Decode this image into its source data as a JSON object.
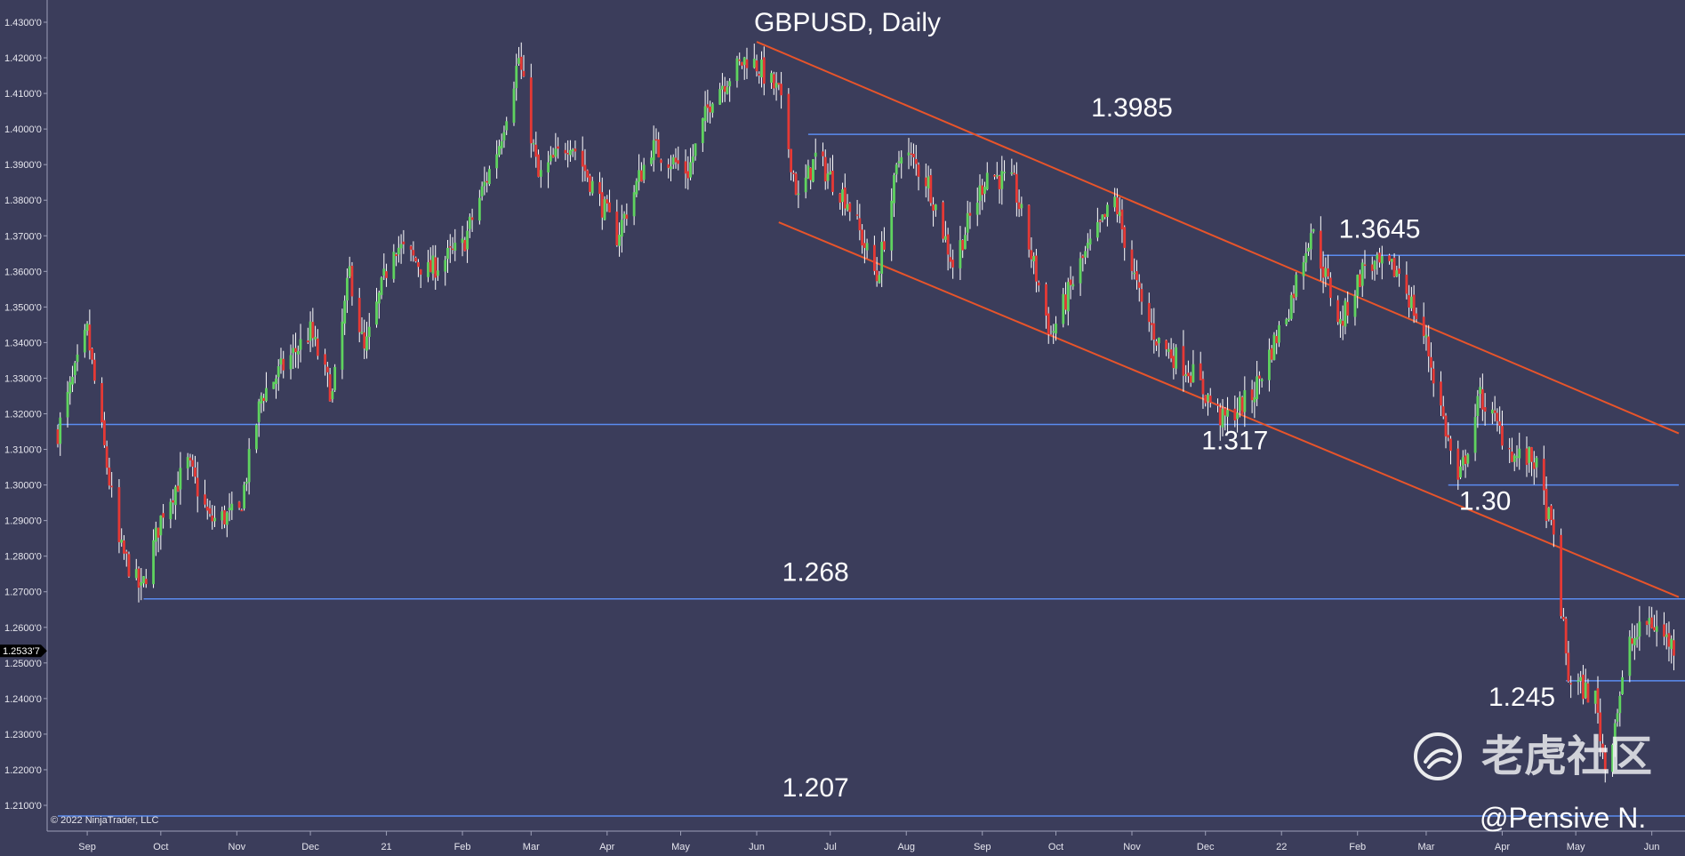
{
  "chart_data": {
    "type": "candlestick",
    "title": "GBPUSD, Daily",
    "symbol": "GBPUSD",
    "timeframe": "Daily",
    "ylim": [
      1.204,
      1.433
    ],
    "y_ticks": [
      "1.4300'0",
      "1.4200'0",
      "1.4100'0",
      "1.4000'0",
      "1.3900'0",
      "1.3800'0",
      "1.3700'0",
      "1.3600'0",
      "1.3500'0",
      "1.3400'0",
      "1.3300'0",
      "1.3200'0",
      "1.3100'0",
      "1.3000'0",
      "1.2900'0",
      "1.2800'0",
      "1.2700'0",
      "1.2600'0",
      "1.2500'0",
      "1.2400'0",
      "1.2300'0",
      "1.2200'0",
      "1.2100'0"
    ],
    "y_tick_values": [
      1.43,
      1.42,
      1.41,
      1.4,
      1.39,
      1.38,
      1.37,
      1.36,
      1.35,
      1.34,
      1.33,
      1.32,
      1.31,
      1.3,
      1.29,
      1.28,
      1.27,
      1.26,
      1.25,
      1.24,
      1.23,
      1.22,
      1.21
    ],
    "x_ticks": [
      "Sep",
      "Oct",
      "Nov",
      "Dec",
      "21",
      "Feb",
      "Mar",
      "Apr",
      "May",
      "Jun",
      "Jul",
      "Aug",
      "Sep",
      "Oct",
      "Nov",
      "Dec",
      "22",
      "Feb",
      "Mar",
      "Apr",
      "May",
      "Jun"
    ],
    "x_tick_dates": [
      "2020-09-01",
      "2020-10-01",
      "2020-11-01",
      "2020-12-01",
      "2021-01-01",
      "2021-02-01",
      "2021-03-01",
      "2021-04-01",
      "2021-05-01",
      "2021-06-01",
      "2021-07-01",
      "2021-08-01",
      "2021-09-01",
      "2021-10-01",
      "2021-11-01",
      "2021-12-01",
      "2022-01-01",
      "2022-02-01",
      "2022-03-01",
      "2022-04-01",
      "2022-05-01",
      "2022-06-01"
    ],
    "x_range": [
      "2020-08-20",
      "2022-06-12"
    ],
    "current_price": "1.2533'7",
    "current_price_value": 1.2534,
    "price_path": [
      [
        "2020-08-20",
        1.315
      ],
      [
        "2020-09-01",
        1.343
      ],
      [
        "2020-09-08",
        1.31
      ],
      [
        "2020-09-14",
        1.283
      ],
      [
        "2020-09-23",
        1.27
      ],
      [
        "2020-10-02",
        1.293
      ],
      [
        "2020-10-12",
        1.306
      ],
      [
        "2020-10-21",
        1.29
      ],
      [
        "2020-11-02",
        1.292
      ],
      [
        "2020-11-11",
        1.325
      ],
      [
        "2020-11-23",
        1.336
      ],
      [
        "2020-12-01",
        1.343
      ],
      [
        "2020-12-10",
        1.325
      ],
      [
        "2020-12-17",
        1.36
      ],
      [
        "2020-12-23",
        1.337
      ],
      [
        "2021-01-04",
        1.368
      ],
      [
        "2021-01-18",
        1.36
      ],
      [
        "2021-02-01",
        1.367
      ],
      [
        "2021-02-16",
        1.396
      ],
      [
        "2021-02-24",
        1.42
      ],
      [
        "2021-03-04",
        1.386
      ],
      [
        "2021-03-17",
        1.397
      ],
      [
        "2021-04-05",
        1.37
      ],
      [
        "2021-04-19",
        1.395
      ],
      [
        "2021-05-04",
        1.388
      ],
      [
        "2021-05-14",
        1.41
      ],
      [
        "2021-05-28",
        1.42
      ],
      [
        "2021-06-01",
        1.418
      ],
      [
        "2021-06-10",
        1.41
      ],
      [
        "2021-06-18",
        1.38
      ],
      [
        "2021-06-25",
        1.392
      ],
      [
        "2021-07-08",
        1.38
      ],
      [
        "2021-07-20",
        1.358
      ],
      [
        "2021-07-30",
        1.395
      ],
      [
        "2021-08-10",
        1.385
      ],
      [
        "2021-08-20",
        1.362
      ],
      [
        "2021-09-03",
        1.388
      ],
      [
        "2021-09-14",
        1.384
      ],
      [
        "2021-09-29",
        1.342
      ],
      [
        "2021-10-11",
        1.362
      ],
      [
        "2021-10-25",
        1.38
      ],
      [
        "2021-11-05",
        1.35
      ],
      [
        "2021-11-12",
        1.34
      ],
      [
        "2021-11-25",
        1.332
      ],
      [
        "2021-12-08",
        1.318
      ],
      [
        "2021-12-20",
        1.325
      ],
      [
        "2022-01-04",
        1.35
      ],
      [
        "2022-01-13",
        1.372
      ],
      [
        "2022-01-25",
        1.345
      ],
      [
        "2022-02-04",
        1.362
      ],
      [
        "2022-02-18",
        1.36
      ],
      [
        "2022-03-01",
        1.34
      ],
      [
        "2022-03-14",
        1.3
      ],
      [
        "2022-03-23",
        1.325
      ],
      [
        "2022-04-06",
        1.308
      ],
      [
        "2022-04-14",
        1.307
      ],
      [
        "2022-04-22",
        1.285
      ],
      [
        "2022-04-28",
        1.246
      ],
      [
        "2022-05-09",
        1.24
      ],
      [
        "2022-05-13",
        1.22
      ],
      [
        "2022-05-23",
        1.255
      ],
      [
        "2022-05-31",
        1.262
      ],
      [
        "2022-06-12",
        1.253
      ]
    ],
    "horizontal_levels": [
      {
        "value": 1.3985,
        "label": "1.3985",
        "from": "2021-06-22"
      },
      {
        "value": 1.3645,
        "label": "1.3645",
        "from": "2022-01-18"
      },
      {
        "value": 1.317,
        "label": "1.317",
        "from": "2020-08-20"
      },
      {
        "value": 1.3,
        "label": "1.30",
        "from": "2022-03-10",
        "to": "2022-06-12"
      },
      {
        "value": 1.268,
        "label": "1.268",
        "from": "2020-09-24"
      },
      {
        "value": 1.245,
        "label": "1.245",
        "from": "2022-04-27"
      },
      {
        "value": 1.207,
        "label": "1.207",
        "from": "2020-08-20"
      }
    ],
    "trend_lines": [
      {
        "from": [
          "2021-06-01",
          1.4245
        ],
        "to": [
          "2022-06-12",
          1.3145
        ]
      },
      {
        "from": [
          "2021-06-10",
          1.3738
        ],
        "to": [
          "2022-06-12",
          1.2685
        ]
      }
    ],
    "grid": false,
    "legend": "none",
    "colors": {
      "background": "#3b3d5b",
      "bull": "#5fd35f",
      "bear": "#e53935",
      "wick": "#ffffff",
      "level_line": "#5b8cf0",
      "trend_line": "#e8542a",
      "text": "#ffffff"
    }
  },
  "copyright": "© 2022 NinjaTrader, LLC",
  "watermark": {
    "brand": "老虎社区",
    "icon": "tiger-logo-icon"
  },
  "handle": "@Pensive N."
}
